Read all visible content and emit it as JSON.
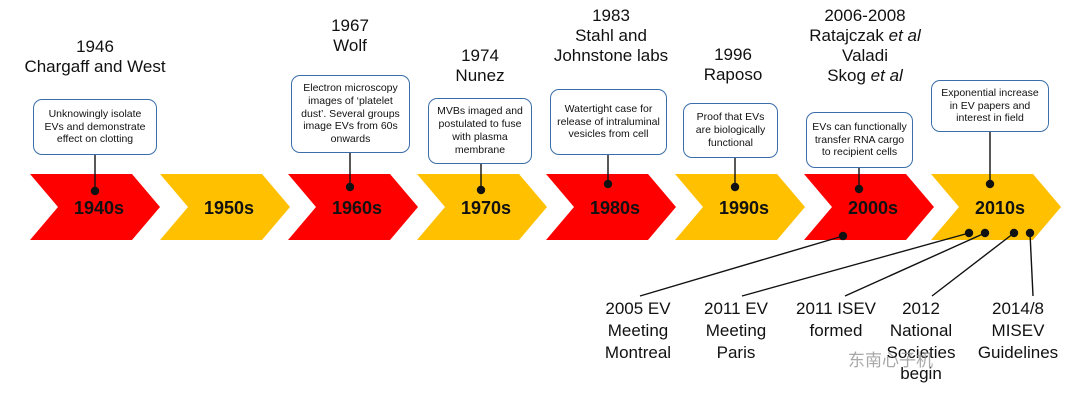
{
  "decades": [
    {
      "label": "1940s",
      "color": "#ff0000"
    },
    {
      "label": "1950s",
      "color": "#ffc000"
    },
    {
      "label": "1960s",
      "color": "#ff0000"
    },
    {
      "label": "1970s",
      "color": "#ffc000"
    },
    {
      "label": "1980s",
      "color": "#ff0000"
    },
    {
      "label": "1990s",
      "color": "#ffc000"
    },
    {
      "label": "2000s",
      "color": "#ff0000"
    },
    {
      "label": "2010s",
      "color": "#ffc000"
    }
  ],
  "events": [
    {
      "year": "1946",
      "who": "Chargaff and West",
      "desc": "Unknowingly isolate EVs and demonstrate effect on clotting"
    },
    {
      "year": "1967",
      "who": "Wolf",
      "desc": "Electron microscopy images of ‘platelet dust’. Several groups image EVs from 60s onwards"
    },
    {
      "year": "1974",
      "who": "Nunez",
      "desc": "MVBs imaged and postulated to fuse with plasma membrane"
    },
    {
      "year": "1983",
      "who": "Stahl and Johnstone labs",
      "desc": "Watertight case for release of intraluminal vesicles from cell"
    },
    {
      "year": "1996",
      "who": "Raposo",
      "desc": "Proof that EVs are biologically functional"
    },
    {
      "year": "2006-2008",
      "who1": "Ratajczak",
      "who2": "Valadi",
      "who3": "Skog",
      "etal": "et al",
      "desc": "EVs can functionally transfer RNA cargo to recipient cells"
    },
    {
      "desc": "Exponential increase in EV papers and interest in field"
    }
  ],
  "milestones": [
    {
      "line1": "2005 EV",
      "line2": "Meeting",
      "line3": "Montreal"
    },
    {
      "line1": "2011 EV",
      "line2": "Meeting",
      "line3": "Paris"
    },
    {
      "line1": "2011 ISEV",
      "line2": "formed"
    },
    {
      "line1": "2012",
      "line2": "National",
      "line3": "Societies",
      "line4": "begin"
    },
    {
      "line1": "2014/8",
      "line2": "MISEV",
      "line3": "Guidelines"
    }
  ],
  "watermark": "东南心子机"
}
